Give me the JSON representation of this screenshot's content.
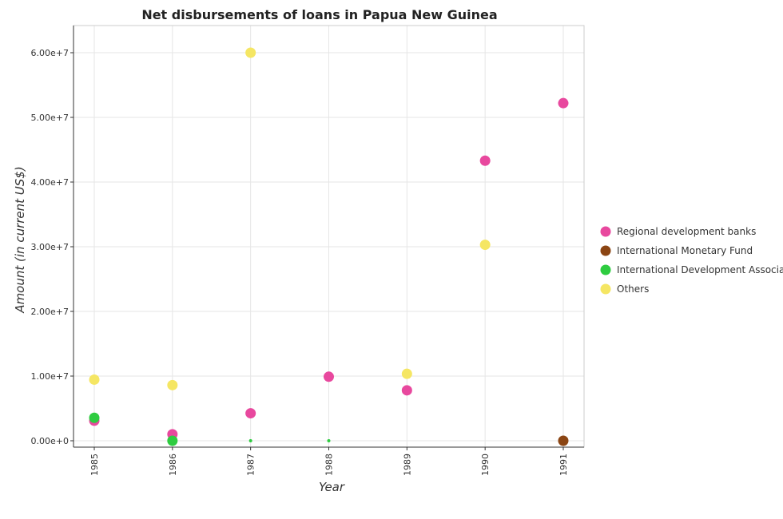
{
  "chart_data": {
    "type": "scatter",
    "title": "Net disbursements of loans in Papua New Guinea",
    "xlabel": "Year",
    "ylabel": "Amount (in current US$)",
    "categories": [
      "1985",
      "1986",
      "1987",
      "1988",
      "1989",
      "1990",
      "1991"
    ],
    "ylim": [
      0,
      64000000
    ],
    "yticks": [
      {
        "value": 0,
        "label": "0.00e+0"
      },
      {
        "value": 10000000,
        "label": "1.00e+7"
      },
      {
        "value": 20000000,
        "label": "2.00e+7"
      },
      {
        "value": 30000000,
        "label": "3.00e+7"
      },
      {
        "value": 40000000,
        "label": "4.00e+7"
      },
      {
        "value": 50000000,
        "label": "5.00e+7"
      },
      {
        "value": 60000000,
        "label": "6.00e+7"
      }
    ],
    "grid": true,
    "legend_position": "right",
    "series": [
      {
        "name": "Regional development banks",
        "color": "#e8489e",
        "values": [
          3100000,
          1000000,
          4250000,
          9900000,
          7800000,
          43300000,
          52200000
        ]
      },
      {
        "name": "International Monetary Fund",
        "color": "#8b4513",
        "values": [
          null,
          null,
          null,
          null,
          null,
          null,
          0
        ]
      },
      {
        "name": "International Development Association",
        "color": "#2ecc40",
        "values": [
          3550000,
          0,
          null,
          null,
          null,
          null,
          null
        ]
      },
      {
        "name": "Others",
        "color": "#f5e663",
        "values": [
          9450000,
          8600000,
          60000000,
          null,
          10350000,
          30300000,
          null
        ]
      }
    ],
    "zero_markers": [
      {
        "series": 2,
        "category": 2
      },
      {
        "series": 2,
        "category": 3
      }
    ]
  }
}
